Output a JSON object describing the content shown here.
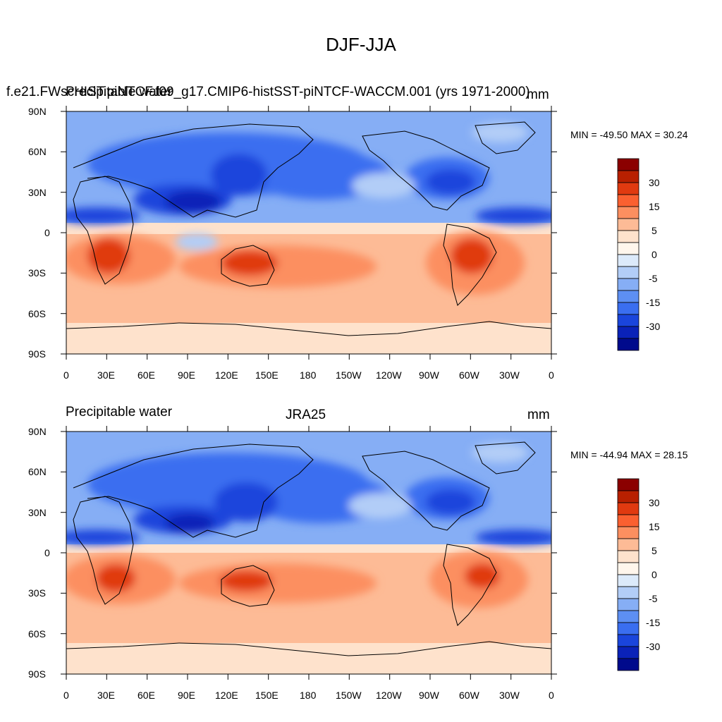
{
  "figure": {
    "title": "DJF-JJA"
  },
  "panels": [
    {
      "left_title": "f.e21.FWscHIST.piNTCF.f09_g17.CMIP6-histSST-piNTCF-WACCM.001 (yrs 1971-2000)",
      "overlap_title": "Precipitable water",
      "center_title": "",
      "units": "mm",
      "stats": "MIN = -49.50 MAX =  30.24"
    },
    {
      "left_title": "Precipitable water",
      "center_title": "JRA25",
      "units": "mm",
      "stats": "MIN = -44.94 MAX =  28.15"
    }
  ],
  "axes": {
    "lat_labels": [
      "90N",
      "60N",
      "30N",
      "0",
      "30S",
      "60S",
      "90S"
    ],
    "lon_labels": [
      "0",
      "30E",
      "60E",
      "90E",
      "120E",
      "150E",
      "180",
      "150W",
      "120W",
      "90W",
      "60W",
      "30W",
      "0"
    ]
  },
  "colorbar": {
    "labels": [
      "30",
      "15",
      "5",
      "0",
      "-5",
      "-15",
      "-30"
    ],
    "colors_top_to_bottom": [
      "#8b0000",
      "#b82000",
      "#e03a10",
      "#fa6030",
      "#fc8f60",
      "#fdbb96",
      "#fee2cc",
      "#fff6ec",
      "#dceafa",
      "#b2cdf7",
      "#86aef5",
      "#5d8ff3",
      "#3a6ef0",
      "#1a45dc",
      "#0a22b8",
      "#000a8c"
    ]
  },
  "colors": {
    "ocean_neg_light": "#86aef5",
    "neg_mid": "#3a6ef0",
    "neg_strong": "#1a45dc",
    "pos_light": "#fdbb96",
    "pos_mid": "#fc8f60",
    "pos_strong": "#e03a10"
  }
}
